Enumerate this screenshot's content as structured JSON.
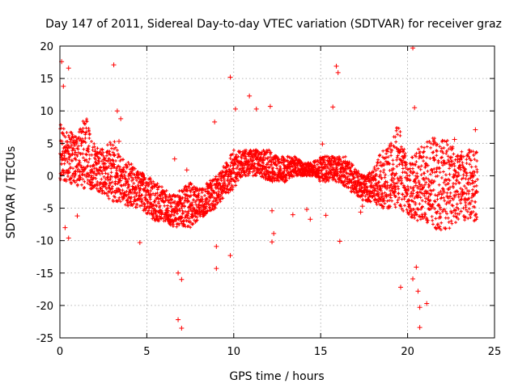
{
  "chart_data": {
    "type": "scatter",
    "title": "Day 147 of 2011, Sidereal Day-to-day VTEC variation (SDTVAR) for receiver graz",
    "xlabel": "GPS time / hours",
    "ylabel": "SDTVAR / TECUs",
    "xlim": [
      0,
      25
    ],
    "ylim": [
      -25,
      20
    ],
    "xticks": [
      0,
      5,
      10,
      15,
      20,
      25
    ],
    "yticks": [
      -25,
      -20,
      -15,
      -10,
      -5,
      0,
      5,
      10,
      15,
      20
    ],
    "grid": true,
    "marker": "+",
    "color": "#ff0000",
    "envelope": {
      "hours": [
        0,
        0.5,
        1,
        1.5,
        2,
        2.5,
        3,
        3.5,
        4,
        4.5,
        5,
        5.5,
        6,
        6.5,
        7,
        7.5,
        8,
        8.5,
        9,
        9.5,
        10,
        10.5,
        11,
        11.5,
        12,
        12.5,
        13,
        13.5,
        14,
        14.5,
        15,
        15.5,
        16,
        16.5,
        17,
        17.5,
        18,
        18.5,
        19,
        19.5,
        20,
        20.5,
        21,
        21.5,
        22,
        22.5,
        23,
        23.5,
        24
      ],
      "upper": [
        8,
        7,
        6,
        10,
        5,
        4,
        6,
        3,
        2,
        1,
        0,
        -1,
        -2,
        -3,
        -2,
        -1,
        -2,
        -1,
        0,
        2,
        4,
        4,
        4,
        4,
        4,
        3,
        3,
        3,
        2,
        2,
        3,
        3,
        3,
        3,
        1,
        0,
        1,
        4,
        5,
        9,
        2,
        4,
        5,
        6,
        6,
        5,
        4,
        4,
        4
      ],
      "lower": [
        -1,
        -1,
        -2,
        -2,
        -2,
        -3,
        -4,
        -4,
        -5,
        -5,
        -6,
        -7,
        -7,
        -8,
        -8,
        -8,
        -7,
        -6,
        -5,
        -3,
        -2,
        0,
        0,
        0,
        -1,
        -1,
        -1,
        0,
        0,
        0,
        -1,
        -1,
        -1,
        -2,
        -3,
        -4,
        -4,
        -5,
        -5,
        -5,
        -6,
        -7,
        -7,
        -8,
        -9,
        -8,
        -7,
        -7,
        -7
      ]
    },
    "outliers": [
      [
        0.1,
        17.6
      ],
      [
        0.2,
        13.8
      ],
      [
        0.5,
        16.6
      ],
      [
        0.6,
        5.2
      ],
      [
        1.0,
        -6.2
      ],
      [
        0.3,
        -8.0
      ],
      [
        0.5,
        -9.6
      ],
      [
        3.1,
        17.1
      ],
      [
        3.3,
        10.0
      ],
      [
        3.5,
        8.8
      ],
      [
        3.4,
        5.3
      ],
      [
        4.6,
        -10.3
      ],
      [
        6.6,
        2.6
      ],
      [
        6.8,
        -15.0
      ],
      [
        6.8,
        -22.2
      ],
      [
        7.0,
        -23.5
      ],
      [
        7.0,
        -16.0
      ],
      [
        7.3,
        0.9
      ],
      [
        8.9,
        8.3
      ],
      [
        9.0,
        -10.9
      ],
      [
        9.0,
        -14.3
      ],
      [
        9.8,
        15.2
      ],
      [
        9.8,
        -12.3
      ],
      [
        10.1,
        10.3
      ],
      [
        10.9,
        12.3
      ],
      [
        11.3,
        10.3
      ],
      [
        12.1,
        10.7
      ],
      [
        12.3,
        -8.9
      ],
      [
        12.2,
        -5.4
      ],
      [
        12.2,
        -10.2
      ],
      [
        13.4,
        -6.0
      ],
      [
        14.2,
        -5.2
      ],
      [
        14.4,
        -6.7
      ],
      [
        15.1,
        4.9
      ],
      [
        15.3,
        -6.1
      ],
      [
        15.9,
        16.9
      ],
      [
        16.0,
        15.9
      ],
      [
        15.7,
        10.6
      ],
      [
        16.1,
        -10.1
      ],
      [
        17.4,
        -4.7
      ],
      [
        17.3,
        -5.6
      ],
      [
        19.0,
        -3.0
      ],
      [
        19.8,
        3.1
      ],
      [
        19.6,
        -17.2
      ],
      [
        20.3,
        19.7
      ],
      [
        20.4,
        10.5
      ],
      [
        20.5,
        -14.1
      ],
      [
        20.3,
        -15.9
      ],
      [
        20.6,
        -17.8
      ],
      [
        20.7,
        -23.4
      ],
      [
        20.7,
        -20.3
      ],
      [
        21.1,
        -19.7
      ],
      [
        22.7,
        5.6
      ],
      [
        22.9,
        3.0
      ],
      [
        23.9,
        7.1
      ]
    ]
  }
}
